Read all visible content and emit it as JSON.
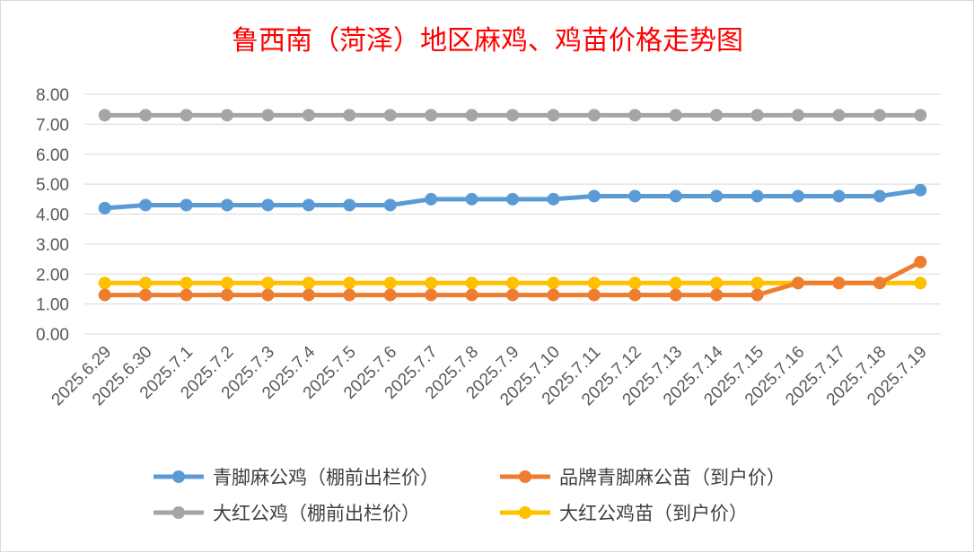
{
  "chart_data": {
    "type": "line",
    "title": "鲁西南（菏泽）地区麻鸡、鸡苗价格走势图",
    "xlabel": "",
    "ylabel": "",
    "ylim": [
      0,
      8
    ],
    "yticks": [
      "0.00",
      "1.00",
      "2.00",
      "3.00",
      "4.00",
      "5.00",
      "6.00",
      "7.00",
      "8.00"
    ],
    "grid": true,
    "legend_position": "bottom",
    "x": [
      "2025.6.29",
      "2025.6.30",
      "2025.7.1",
      "2025.7.2",
      "2025.7.3",
      "2025.7.4",
      "2025.7.5",
      "2025.7.6",
      "2025.7.7",
      "2025.7.8",
      "2025.7.9",
      "2025.7.10",
      "2025.7.11",
      "2025.7.12",
      "2025.7.13",
      "2025.7.14",
      "2025.7.15",
      "2025.7.16",
      "2025.7.17",
      "2025.7.18",
      "2025.7.19"
    ],
    "series": [
      {
        "name": "青脚麻公鸡（棚前出栏价）",
        "color": "#5b9bd5",
        "values": [
          4.2,
          4.3,
          4.3,
          4.3,
          4.3,
          4.3,
          4.3,
          4.3,
          4.5,
          4.5,
          4.5,
          4.5,
          4.6,
          4.6,
          4.6,
          4.6,
          4.6,
          4.6,
          4.6,
          4.6,
          4.8
        ]
      },
      {
        "name": "品牌青脚麻公苗（到户价）",
        "color": "#ed7d31",
        "values": [
          1.3,
          1.3,
          1.3,
          1.3,
          1.3,
          1.3,
          1.3,
          1.3,
          1.3,
          1.3,
          1.3,
          1.3,
          1.3,
          1.3,
          1.3,
          1.3,
          1.3,
          1.7,
          1.7,
          1.7,
          2.4
        ]
      },
      {
        "name": "大红公鸡（棚前出栏价）",
        "color": "#a5a5a5",
        "values": [
          7.3,
          7.3,
          7.3,
          7.3,
          7.3,
          7.3,
          7.3,
          7.3,
          7.3,
          7.3,
          7.3,
          7.3,
          7.3,
          7.3,
          7.3,
          7.3,
          7.3,
          7.3,
          7.3,
          7.3,
          7.3
        ]
      },
      {
        "name": "大红公鸡苗（到户价）",
        "color": "#ffc000",
        "values": [
          1.7,
          1.7,
          1.7,
          1.7,
          1.7,
          1.7,
          1.7,
          1.7,
          1.7,
          1.7,
          1.7,
          1.7,
          1.7,
          1.7,
          1.7,
          1.7,
          1.7,
          1.7,
          1.7,
          1.7,
          1.7
        ]
      }
    ],
    "draw_order": [
      2,
      3,
      1,
      0
    ]
  }
}
